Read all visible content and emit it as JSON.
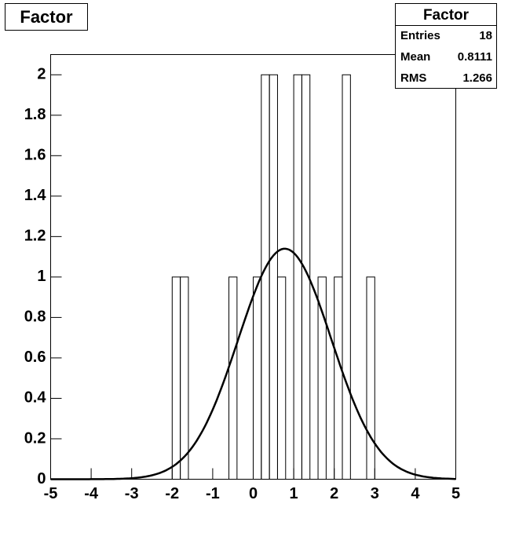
{
  "chart_data": {
    "type": "histogram",
    "title": "Factor",
    "bins": [
      -5,
      -4.8,
      -4.6,
      -4.4,
      -4.2,
      -4,
      -3.8,
      -3.6,
      -3.4,
      -3.2,
      -3,
      -2.8,
      -2.6,
      -2.4,
      -2.2,
      -2,
      -1.8,
      -1.6,
      -1.4,
      -1.2,
      -1,
      -0.8,
      -0.6,
      -0.4,
      -0.2,
      0,
      0.2,
      0.4,
      0.6,
      0.8,
      1,
      1.2,
      1.4,
      1.6,
      1.8,
      2,
      2.2,
      2.4,
      2.6,
      2.8,
      3,
      3.2,
      3.4,
      3.6,
      3.8,
      4,
      4.2,
      4.4,
      4.6,
      4.8,
      5
    ],
    "values": [
      0,
      0,
      0,
      0,
      0,
      0,
      0,
      0,
      0,
      0,
      0,
      0,
      0,
      0,
      0,
      1,
      1,
      0,
      0,
      0,
      0,
      0,
      1,
      0,
      0,
      1,
      2,
      2,
      1,
      0,
      2,
      2,
      0,
      1,
      0,
      1,
      2,
      0,
      0,
      1,
      0,
      0,
      0,
      0,
      0,
      0,
      0,
      0,
      0,
      0
    ],
    "color": "#000000",
    "fit": {
      "constant": 1.14,
      "mean": 0.78,
      "sigma": 1.15
    },
    "xlim": [
      -5,
      5
    ],
    "xticks": [
      -5,
      -4,
      -3,
      -2,
      -1,
      0,
      1,
      2,
      3,
      4,
      5
    ],
    "ylim": [
      0,
      2.1
    ],
    "yticks": [
      0,
      0.2,
      0.4,
      0.6,
      0.8,
      1,
      1.2,
      1.4,
      1.6,
      1.8,
      2
    ],
    "stats": {
      "title": "Factor",
      "rows": [
        [
          "Entries",
          "18"
        ],
        [
          "Mean",
          "0.8111"
        ],
        [
          "RMS",
          "1.266"
        ]
      ]
    }
  }
}
